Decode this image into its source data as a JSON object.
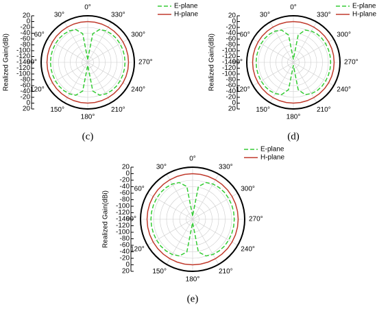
{
  "chart_data": [
    {
      "type": "polar",
      "label": "(c)",
      "ylabel": "Realized Gain(dBi)",
      "legend": "upper right",
      "grid": true,
      "rlim": [
        -140,
        20
      ],
      "rticks": [
        20,
        0,
        -20,
        -40,
        -60,
        -80,
        -100,
        -120,
        -140
      ],
      "thetaticks": [
        {
          "value": 0,
          "label": "0°"
        },
        {
          "value": 30,
          "label": "30°"
        },
        {
          "value": 60,
          "label": "60°"
        },
        {
          "value": 90,
          "label": "90°"
        },
        {
          "value": 120,
          "label": "120°"
        },
        {
          "value": 150,
          "label": "150°"
        },
        {
          "value": 180,
          "label": "180°"
        },
        {
          "value": 210,
          "label": "210°"
        },
        {
          "value": 240,
          "label": "240°"
        },
        {
          "value": 270,
          "label": "270°"
        },
        {
          "value": 300,
          "label": "300°"
        },
        {
          "value": 330,
          "label": "330°"
        }
      ],
      "theta": [
        0,
        10,
        20,
        30,
        40,
        50,
        60,
        70,
        80,
        90,
        100,
        110,
        120,
        130,
        140,
        150,
        160,
        170,
        180,
        190,
        200,
        210,
        220,
        230,
        240,
        250,
        260,
        270,
        280,
        290,
        300,
        310,
        320,
        330,
        340,
        350,
        360
      ],
      "series": [
        {
          "name": "E-plane",
          "color": "#33cc33",
          "linestyle": "dashed",
          "values": [
            -130,
            -40,
            -20,
            -15,
            -13,
            -12,
            -12,
            -12,
            -12,
            -12,
            -12,
            -12,
            -12,
            -12,
            -13,
            -15,
            -20,
            -40,
            -130,
            -40,
            -20,
            -15,
            -13,
            -12,
            -12,
            -12,
            -12,
            -12,
            -12,
            -12,
            -12,
            -12,
            -13,
            -15,
            -20,
            -40,
            -130
          ]
        },
        {
          "name": "H-plane",
          "color": "#c0392b",
          "linestyle": "solid",
          "values": [
            0,
            0,
            0,
            0,
            0,
            0,
            0,
            0,
            0,
            0,
            0,
            0,
            0,
            0,
            0,
            0,
            0,
            0,
            0,
            0,
            0,
            0,
            0,
            0,
            0,
            0,
            0,
            0,
            0,
            0,
            0,
            0,
            0,
            0,
            0,
            0,
            0
          ]
        }
      ]
    },
    {
      "type": "polar",
      "label": "(d)",
      "ylabel": "Realized Gain(dBi)",
      "legend": "upper right",
      "grid": true,
      "rlim": [
        -140,
        20
      ],
      "rticks": [
        20,
        0,
        -20,
        -40,
        -60,
        -80,
        -100,
        -120,
        -140
      ],
      "thetaticks": [
        {
          "value": 0,
          "label": "0°"
        },
        {
          "value": 30,
          "label": "30°"
        },
        {
          "value": 60,
          "label": "60°"
        },
        {
          "value": 90,
          "label": "90°"
        },
        {
          "value": 120,
          "label": "120°"
        },
        {
          "value": 150,
          "label": "150°"
        },
        {
          "value": 180,
          "label": "180°"
        },
        {
          "value": 210,
          "label": "210°"
        },
        {
          "value": 240,
          "label": "240°"
        },
        {
          "value": 270,
          "label": "270°"
        },
        {
          "value": 300,
          "label": "300°"
        },
        {
          "value": 330,
          "label": "330°"
        }
      ],
      "theta": [
        0,
        10,
        20,
        30,
        40,
        50,
        60,
        70,
        80,
        90,
        100,
        110,
        120,
        130,
        140,
        150,
        160,
        170,
        180,
        190,
        200,
        210,
        220,
        230,
        240,
        250,
        260,
        270,
        280,
        290,
        300,
        310,
        320,
        330,
        340,
        350,
        360
      ],
      "series": [
        {
          "name": "E-plane",
          "color": "#33cc33",
          "linestyle": "dashed",
          "values": [
            -130,
            -45,
            -22,
            -16,
            -13,
            -12,
            -12,
            -12,
            -12,
            -12,
            -12,
            -12,
            -12,
            -12,
            -13,
            -16,
            -22,
            -45,
            -130,
            -45,
            -22,
            -16,
            -13,
            -12,
            -12,
            -12,
            -12,
            -12,
            -12,
            -12,
            -12,
            -12,
            -13,
            -16,
            -22,
            -45,
            -130
          ]
        },
        {
          "name": "H-plane",
          "color": "#c0392b",
          "linestyle": "solid",
          "values": [
            0,
            0,
            0,
            0,
            0,
            0,
            0,
            0,
            0,
            0,
            0,
            0,
            0,
            0,
            0,
            0,
            0,
            0,
            0,
            0,
            0,
            0,
            0,
            0,
            0,
            0,
            0,
            0,
            0,
            0,
            0,
            0,
            0,
            0,
            0,
            0,
            0
          ]
        }
      ]
    },
    {
      "type": "polar",
      "label": "(e)",
      "ylabel": "Realized Gain(dBi)",
      "legend": "upper right",
      "grid": true,
      "rlim": [
        -140,
        20
      ],
      "rticks": [
        20,
        0,
        -20,
        -40,
        -60,
        -80,
        -100,
        -120,
        -140
      ],
      "thetaticks": [
        {
          "value": 0,
          "label": "0°"
        },
        {
          "value": 30,
          "label": "30°"
        },
        {
          "value": 60,
          "label": "60°"
        },
        {
          "value": 90,
          "label": "90°"
        },
        {
          "value": 120,
          "label": "120°"
        },
        {
          "value": 150,
          "label": "150°"
        },
        {
          "value": 180,
          "label": "180°"
        },
        {
          "value": 210,
          "label": "210°"
        },
        {
          "value": 240,
          "label": "240°"
        },
        {
          "value": 270,
          "label": "270°"
        },
        {
          "value": 300,
          "label": "300°"
        },
        {
          "value": 330,
          "label": "330°"
        }
      ],
      "theta": [
        0,
        10,
        20,
        30,
        40,
        50,
        60,
        70,
        80,
        90,
        100,
        110,
        120,
        130,
        140,
        150,
        160,
        170,
        180,
        190,
        200,
        210,
        220,
        230,
        240,
        250,
        260,
        270,
        280,
        290,
        300,
        310,
        320,
        330,
        340,
        350,
        360
      ],
      "series": [
        {
          "name": "E-plane",
          "color": "#33cc33",
          "linestyle": "dashed",
          "values": [
            -130,
            -38,
            -20,
            -15,
            -13,
            -12,
            -12,
            -12,
            -12,
            -12,
            -12,
            -12,
            -12,
            -12,
            -13,
            -15,
            -20,
            -38,
            -130,
            -38,
            -20,
            -15,
            -13,
            -12,
            -12,
            -12,
            -12,
            -12,
            -12,
            -12,
            -12,
            -12,
            -13,
            -15,
            -20,
            -38,
            -130
          ]
        },
        {
          "name": "H-plane",
          "color": "#c0392b",
          "linestyle": "solid",
          "values": [
            0,
            0,
            0,
            0,
            0,
            0,
            0,
            0,
            0,
            0,
            0,
            0,
            0,
            0,
            0,
            0,
            0,
            0,
            0,
            0,
            0,
            0,
            0,
            0,
            0,
            0,
            0,
            0,
            0,
            0,
            0,
            0,
            0,
            0,
            0,
            0,
            0
          ]
        }
      ]
    }
  ]
}
